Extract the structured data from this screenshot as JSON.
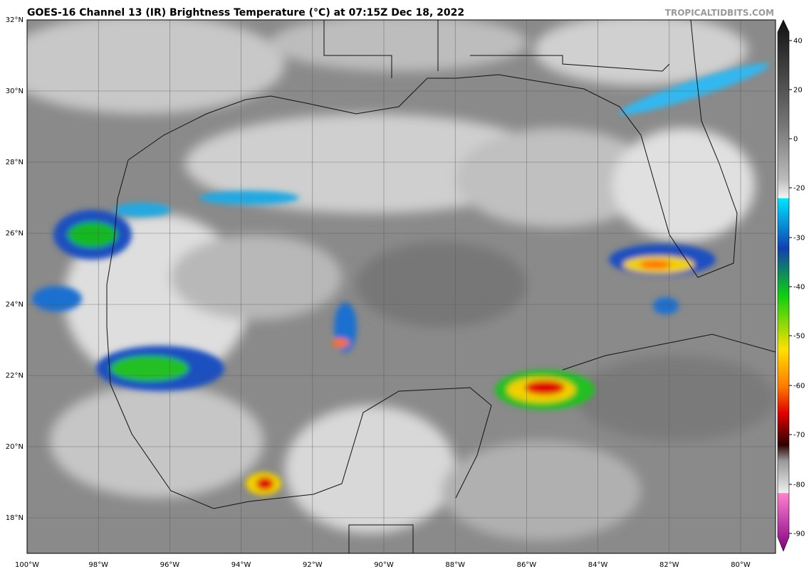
{
  "header": {
    "title": "GOES-16 Channel 13 (IR) Brightness Temperature (°C) at 07:15Z Dec 18, 2022",
    "credit": "TROPICALTIDBITS.COM"
  },
  "map": {
    "lat_labels": [
      "32°N",
      "30°N",
      "28°N",
      "26°N",
      "24°N",
      "22°N",
      "20°N",
      "18°N"
    ],
    "lon_labels": [
      "100°W",
      "98°W",
      "96°W",
      "94°W",
      "92°W",
      "90°W",
      "88°W",
      "86°W",
      "84°W",
      "82°W",
      "80°W"
    ]
  },
  "colorbar": {
    "ticks": [
      40,
      20,
      0,
      -20,
      -30,
      -40,
      -50,
      -60,
      -70,
      -80,
      -90
    ]
  }
}
